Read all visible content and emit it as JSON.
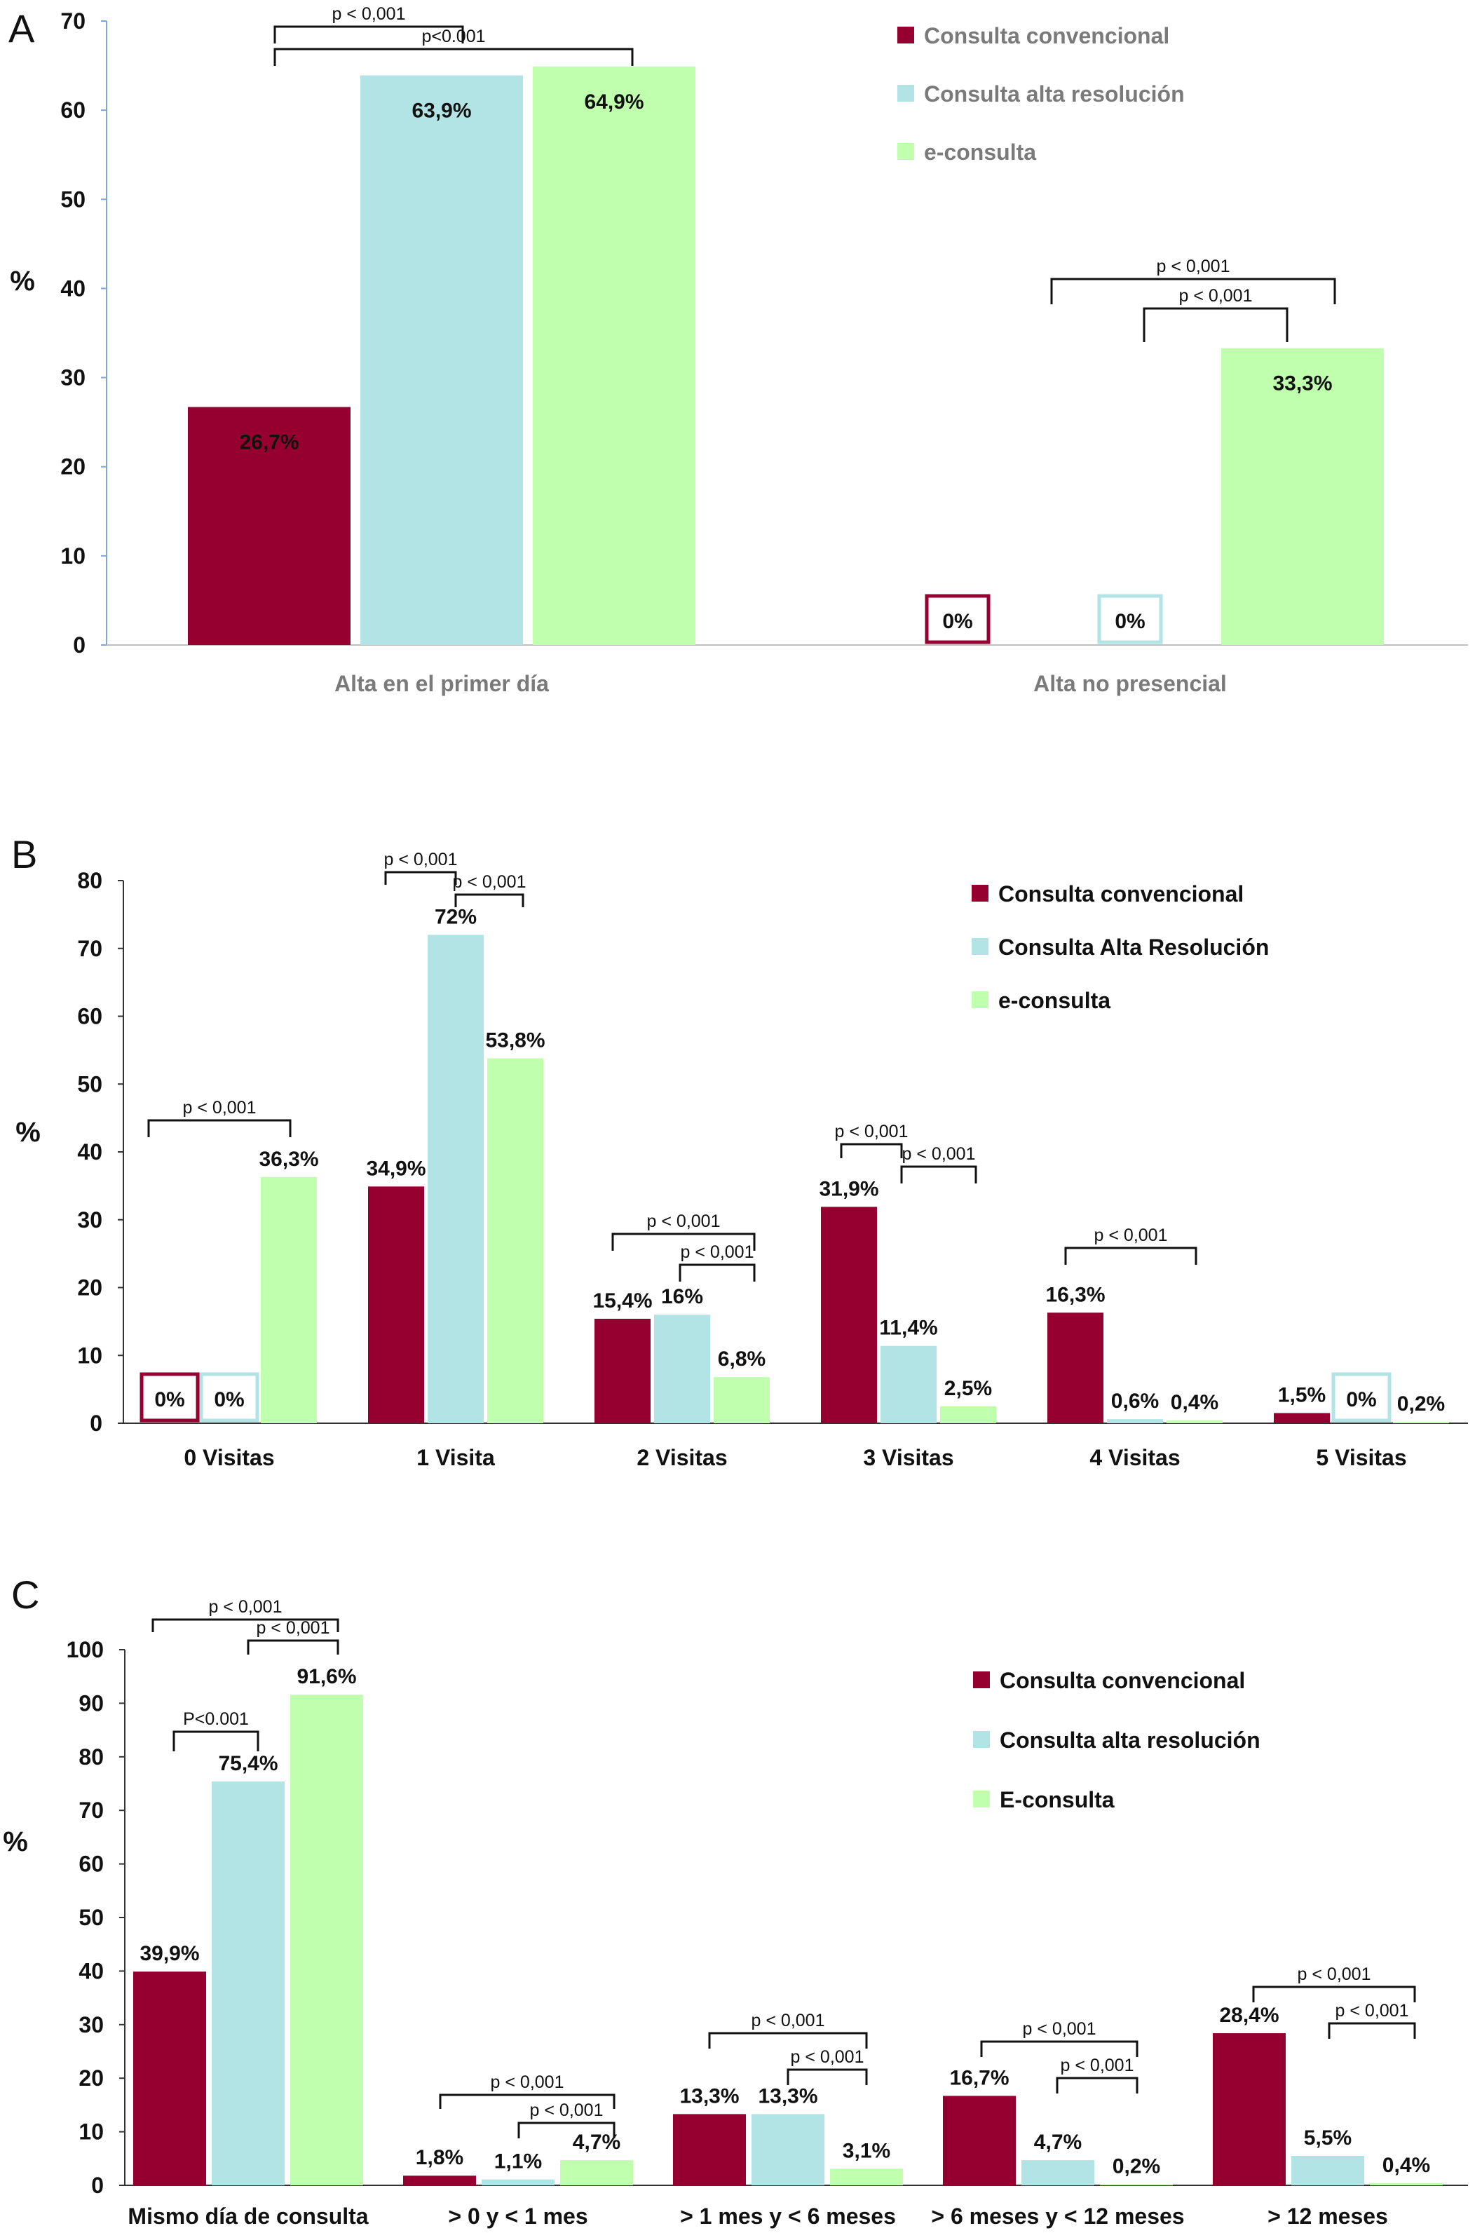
{
  "chart_data": [
    {
      "id": "A",
      "type": "bar",
      "panel_label": "A",
      "ylabel": "%",
      "ylim": [
        0,
        70
      ],
      "yticks": [
        0,
        10,
        20,
        30,
        40,
        50,
        60,
        70
      ],
      "categories": [
        "Alta en el primer día",
        "Alta no presencial"
      ],
      "series": [
        {
          "name": "Consulta convencional",
          "color": "#960030",
          "values": [
            26.7,
            0
          ],
          "labels": [
            "26,7%",
            "0%"
          ],
          "zero_box": [
            false,
            true
          ]
        },
        {
          "name": "Consulta alta resolución",
          "color": "#b2e3e5",
          "values": [
            63.9,
            0
          ],
          "labels": [
            "63,9%",
            "0%"
          ],
          "zero_box": [
            false,
            true
          ]
        },
        {
          "name": "e-consulta",
          "color": "#c0ffad",
          "values": [
            64.9,
            33.3
          ],
          "labels": [
            "64,9%",
            "33,3%"
          ],
          "zero_box": [
            false,
            false
          ]
        }
      ],
      "legend_position": "top-right",
      "annotations": [
        "p < 0,001",
        "p<0.001",
        "p < 0,001",
        "p < 0,001"
      ]
    },
    {
      "id": "B",
      "type": "bar",
      "panel_label": "B",
      "ylabel": "%",
      "ylim": [
        0,
        80
      ],
      "yticks": [
        0,
        10,
        20,
        30,
        40,
        50,
        60,
        70,
        80
      ],
      "categories": [
        "0 Visitas",
        "1 Visita",
        "2 Visitas",
        "3 Visitas",
        "4 Visitas",
        "5 Visitas"
      ],
      "series": [
        {
          "name": "Consulta convencional",
          "color": "#960030",
          "values": [
            0,
            34.9,
            15.4,
            31.9,
            16.3,
            1.5
          ],
          "labels": [
            "0%",
            "34,9%",
            "15,4%",
            "31,9%",
            "16,3%",
            "1,5%"
          ],
          "zero_box": [
            true,
            false,
            false,
            false,
            false,
            false
          ]
        },
        {
          "name": "Consulta Alta Resolución",
          "color": "#b2e3e5",
          "values": [
            0,
            72,
            16,
            11.4,
            0.6,
            0
          ],
          "labels": [
            "0%",
            "72%",
            "16%",
            "11,4%",
            "0,6%",
            "0%"
          ],
          "zero_box": [
            true,
            false,
            false,
            false,
            false,
            true
          ]
        },
        {
          "name": "e-consulta",
          "color": "#c0ffad",
          "values": [
            36.3,
            53.8,
            6.8,
            2.5,
            0.4,
            0.2
          ],
          "labels": [
            "36,3%",
            "53,8%",
            "6,8%",
            "2,5%",
            "0,4%",
            "0,2%"
          ],
          "zero_box": [
            false,
            false,
            false,
            false,
            false,
            false
          ]
        }
      ],
      "legend_position": "top-right",
      "annotations": [
        "p < 0,001",
        "p < 0,001",
        "p < 0,001",
        "p < 0,001",
        "p < 0,001",
        "p < 0,001",
        "p < 0,001",
        "p < 0,001"
      ]
    },
    {
      "id": "C",
      "type": "bar",
      "panel_label": "C",
      "ylabel": "%",
      "ylim": [
        0,
        100
      ],
      "yticks": [
        0,
        10,
        20,
        30,
        40,
        50,
        60,
        70,
        80,
        90,
        100
      ],
      "categories": [
        "Mismo día de consulta",
        "> 0 y < 1 mes",
        "> 1 mes y < 6 meses",
        "> 6 meses y < 12 meses",
        "> 12 meses"
      ],
      "series": [
        {
          "name": "Consulta convencional",
          "color": "#960030",
          "values": [
            39.9,
            1.8,
            13.3,
            16.7,
            28.4
          ],
          "labels": [
            "39,9%",
            "1,8%",
            "13,3%",
            "16,7%",
            "28,4%"
          ]
        },
        {
          "name": "Consulta alta resolución",
          "color": "#b2e3e5",
          "values": [
            75.4,
            1.1,
            13.3,
            4.7,
            5.5
          ],
          "labels": [
            "75,4%",
            "1,1%",
            "13,3%",
            "4,7%",
            "5,5%"
          ]
        },
        {
          "name": "E-consulta",
          "color": "#c0ffad",
          "values": [
            91.6,
            4.7,
            3.1,
            0.2,
            0.4
          ],
          "labels": [
            "91,6%",
            "4,7%",
            "3,1%",
            "0,2%",
            "0,4%"
          ]
        }
      ],
      "legend_position": "top-right",
      "annotations": [
        "p < 0,001",
        "p < 0,001",
        "P<0.001",
        "p < 0,001",
        "p < 0,001",
        "p < 0,001",
        "p < 0,001",
        "p < 0,001",
        "p < 0,001",
        "p < 0,001",
        "p < 0,001"
      ]
    }
  ]
}
